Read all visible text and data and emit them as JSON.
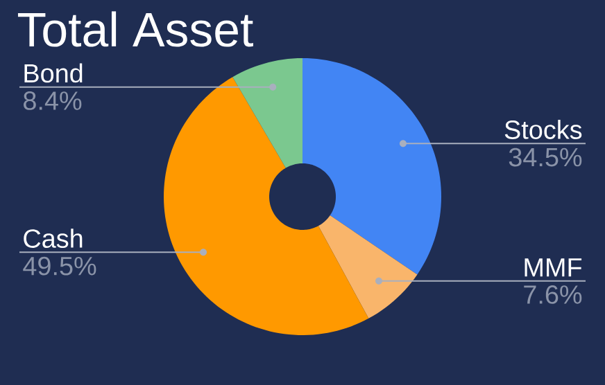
{
  "chart_data": {
    "type": "donut",
    "title": "Total Asset",
    "categories": [
      "Stocks",
      "MMF",
      "Cash",
      "Bond"
    ],
    "values": [
      34.5,
      7.6,
      49.5,
      8.4
    ],
    "colors": [
      "#4285f4",
      "#f9b56b",
      "#ff9900",
      "#7bc88f"
    ],
    "value_labels": [
      "34.5%",
      "7.6%",
      "49.5%",
      "8.4%"
    ]
  }
}
